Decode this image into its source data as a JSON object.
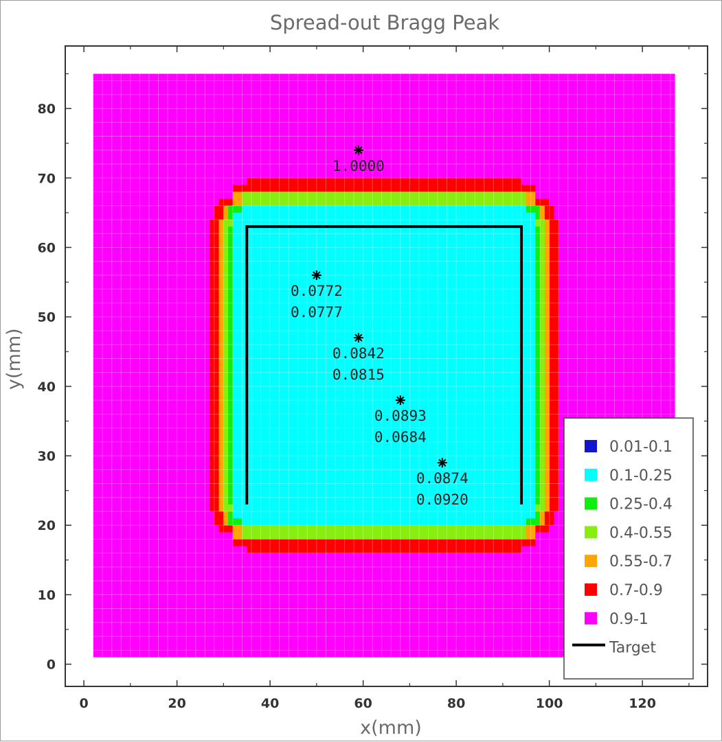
{
  "chart_data": {
    "type": "heatmap",
    "title": "Spread-out Bragg Peak",
    "xlabel": "x(mm)",
    "ylabel": "y(mm)",
    "xlim": [
      -4,
      134
    ],
    "ylim": [
      -3.2,
      89
    ],
    "xticks": [
      0,
      20,
      40,
      60,
      80,
      100,
      120
    ],
    "yticks": [
      0,
      10,
      20,
      30,
      40,
      50,
      60,
      70,
      80
    ],
    "grid": true,
    "legend_position": "bottom-right",
    "field_extent": {
      "x": [
        2,
        127
      ],
      "y": [
        1,
        85
      ]
    },
    "legend": [
      {
        "label": "0.01-0.1",
        "color": "#1414cc"
      },
      {
        "label": "0.1-0.25",
        "color": "#00ffff"
      },
      {
        "label": "0.25-0.4",
        "color": "#10ee10"
      },
      {
        "label": "0.4-0.55",
        "color": "#88ee10"
      },
      {
        "label": "0.55-0.7",
        "color": "#ffa500"
      },
      {
        "label": "0.7-0.9",
        "color": "#ff0000"
      },
      {
        "label": "0.9-1",
        "color": "#ff00ff"
      }
    ],
    "target_label": "Target",
    "target": {
      "x": [
        35,
        94
      ],
      "y": [
        23,
        63
      ]
    },
    "annotations": [
      {
        "x": 59,
        "y": 74,
        "lines": [
          "1.0000"
        ]
      },
      {
        "x": 50,
        "y": 56,
        "lines": [
          "0.0772",
          "0.0777"
        ]
      },
      {
        "x": 59,
        "y": 47,
        "lines": [
          "0.0842",
          "0.0815"
        ]
      },
      {
        "x": 68,
        "y": 38,
        "lines": [
          "0.0893",
          "0.0684"
        ]
      },
      {
        "x": 77,
        "y": 29,
        "lines": [
          "0.0874",
          "0.0920"
        ]
      }
    ]
  }
}
